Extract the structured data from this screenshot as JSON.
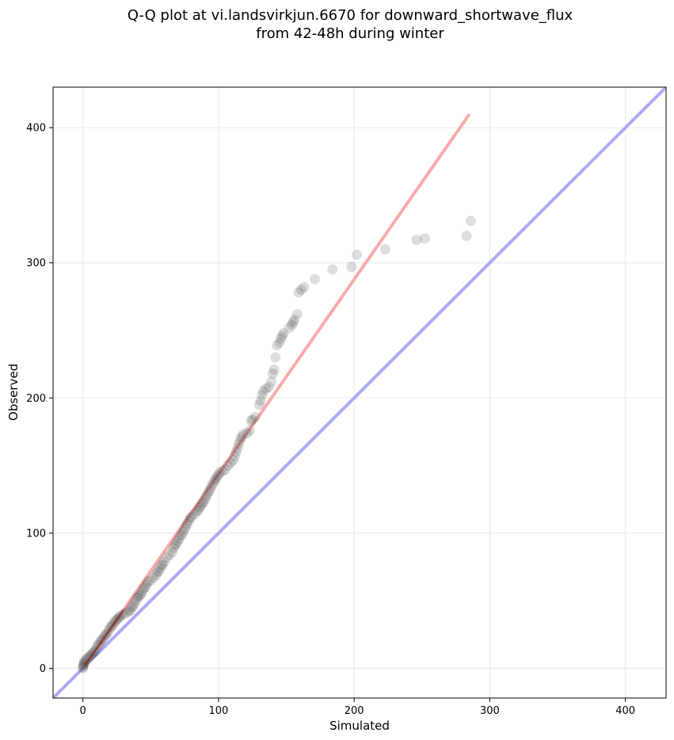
{
  "chart_data": {
    "type": "scatter",
    "title": "Q-Q plot at vi.landsvirkjun.6670 for downward_shortwave_flux",
    "subtitle": "from 42-48h during winter",
    "xlabel": "Simulated",
    "ylabel": "Observed",
    "xlim": [
      -22,
      430
    ],
    "ylim": [
      -22,
      430
    ],
    "xticks": [
      0,
      100,
      200,
      300,
      400
    ],
    "yticks": [
      0,
      100,
      200,
      300,
      400
    ],
    "grid": true,
    "colors": {
      "points": "#333333",
      "identity_line": "#aaaaf5",
      "fit_line": "#f7aaaa",
      "fit_line_dense": "#8b1a1a"
    },
    "reference_lines": [
      {
        "kind": "identity",
        "x": [
          -22,
          430
        ],
        "y": [
          -22,
          430
        ]
      },
      {
        "kind": "fit",
        "x": [
          0,
          285
        ],
        "y": [
          0,
          410
        ]
      }
    ],
    "points": [
      [
        0,
        0
      ],
      [
        0,
        1
      ],
      [
        0.5,
        2
      ],
      [
        0.5,
        3
      ],
      [
        1,
        4
      ],
      [
        1,
        5
      ],
      [
        2,
        6
      ],
      [
        3,
        7
      ],
      [
        4,
        8
      ],
      [
        5,
        9
      ],
      [
        6,
        10
      ],
      [
        7,
        11
      ],
      [
        8,
        12
      ],
      [
        9,
        13
      ],
      [
        10,
        15
      ],
      [
        11,
        17
      ],
      [
        12,
        18
      ],
      [
        13,
        20
      ],
      [
        14,
        21
      ],
      [
        15,
        22
      ],
      [
        16,
        24
      ],
      [
        17,
        25
      ],
      [
        18,
        26
      ],
      [
        19,
        28
      ],
      [
        20,
        30
      ],
      [
        21,
        31
      ],
      [
        22,
        32
      ],
      [
        23,
        34
      ],
      [
        24,
        35
      ],
      [
        25,
        36
      ],
      [
        26,
        37
      ],
      [
        27,
        38
      ],
      [
        28,
        39
      ],
      [
        30,
        40
      ],
      [
        32,
        41
      ],
      [
        34,
        42
      ],
      [
        35,
        43
      ],
      [
        36,
        45
      ],
      [
        37,
        46
      ],
      [
        38,
        48
      ],
      [
        39,
        50
      ],
      [
        40,
        52
      ],
      [
        41,
        53
      ],
      [
        42,
        54
      ],
      [
        43,
        55
      ],
      [
        44,
        57
      ],
      [
        45,
        59
      ],
      [
        46,
        60
      ],
      [
        47,
        62
      ],
      [
        48,
        64
      ],
      [
        50,
        65
      ],
      [
        52,
        67
      ],
      [
        54,
        69
      ],
      [
        55,
        71
      ],
      [
        56,
        72
      ],
      [
        57,
        74
      ],
      [
        58,
        76
      ],
      [
        59,
        77
      ],
      [
        60,
        79
      ],
      [
        62,
        82
      ],
      [
        64,
        84
      ],
      [
        66,
        86
      ],
      [
        67,
        89
      ],
      [
        68,
        91
      ],
      [
        69,
        92
      ],
      [
        70,
        94
      ],
      [
        71,
        96
      ],
      [
        72,
        98
      ],
      [
        73,
        99
      ],
      [
        74,
        101
      ],
      [
        75,
        103
      ],
      [
        76,
        105
      ],
      [
        77,
        107
      ],
      [
        78,
        109
      ],
      [
        79,
        111
      ],
      [
        80,
        112
      ],
      [
        82,
        114
      ],
      [
        84,
        116
      ],
      [
        85,
        117
      ],
      [
        86,
        119
      ],
      [
        87,
        120
      ],
      [
        88,
        122
      ],
      [
        89,
        123
      ],
      [
        90,
        125
      ],
      [
        91,
        127
      ],
      [
        92,
        129
      ],
      [
        93,
        131
      ],
      [
        94,
        133
      ],
      [
        95,
        135
      ],
      [
        96,
        137
      ],
      [
        97,
        139
      ],
      [
        98,
        140
      ],
      [
        99,
        142
      ],
      [
        100,
        143
      ],
      [
        101,
        145
      ],
      [
        103,
        146
      ],
      [
        105,
        147
      ],
      [
        107,
        150
      ],
      [
        109,
        152
      ],
      [
        111,
        154
      ],
      [
        112,
        157
      ],
      [
        113,
        160
      ],
      [
        114,
        163
      ],
      [
        115,
        166
      ],
      [
        116,
        169
      ],
      [
        117,
        171
      ],
      [
        118,
        173
      ],
      [
        121,
        174
      ],
      [
        123,
        176
      ],
      [
        124,
        183
      ],
      [
        125,
        184
      ],
      [
        127,
        186
      ],
      [
        130,
        195
      ],
      [
        131,
        198
      ],
      [
        132,
        202
      ],
      [
        133,
        205
      ],
      [
        135,
        207
      ],
      [
        137,
        208
      ],
      [
        139,
        212
      ],
      [
        140,
        218
      ],
      [
        141,
        221
      ],
      [
        142,
        230
      ],
      [
        143,
        239
      ],
      [
        145,
        241
      ],
      [
        146,
        244
      ],
      [
        147,
        246
      ],
      [
        148,
        248
      ],
      [
        152,
        252
      ],
      [
        154,
        254
      ],
      [
        155,
        256
      ],
      [
        156,
        258
      ],
      [
        158,
        262
      ],
      [
        159,
        278
      ],
      [
        161,
        280
      ],
      [
        163,
        282
      ],
      [
        171,
        288
      ],
      [
        184,
        295
      ],
      [
        198,
        297
      ],
      [
        202,
        306
      ],
      [
        223,
        310
      ],
      [
        246,
        317
      ],
      [
        252,
        318
      ],
      [
        283,
        320
      ],
      [
        286,
        331
      ]
    ]
  }
}
